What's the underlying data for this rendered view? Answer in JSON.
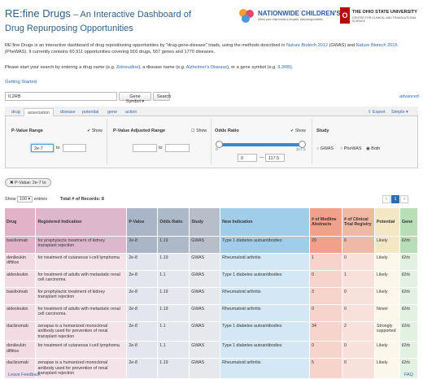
{
  "header": {
    "title_main": "RE:fine Drugs",
    "title_rest": " – An Interactive Dashboard of",
    "title_line2": "Drug Repurposing Opportunities",
    "logo_nationwide": "NATIONWIDE CHILDREN'S",
    "logo_nationwide_tag": "When your child needs a hospital, everything matters.",
    "logo_osu": "THE OHIO STATE UNIVERSITY",
    "logo_osu_sub": "CENTER FOR CLINICAL AND TRANSLATIONAL SCIENCE"
  },
  "intro": {
    "p1": "RE:fine Drugs is an interactive dashboard of drug repositioning opportunities by \"drug-gene-disease\" triads, using the methods described in ",
    "link1": "Nature Biotech 2012",
    "p2": " (GWAS) and ",
    "link2": "Nature Biotech 2015",
    "p3": " (PheWAS). It currently contains 60,911 opportunities covering 916 drugs, 567 genes and 1770 diseases.",
    "prompt1": "Please start your search by entering a drug name (e.g. ",
    "ex_drug": "Zidovudine",
    "prompt2": "), a disease name (e.g. ",
    "ex_disease": "Alzheimer's Disease",
    "prompt3": "), or a gene symbol (e.g. ",
    "ex_gene": "IL2RB",
    "prompt4": ").",
    "getting_started": "Getting Started"
  },
  "search": {
    "value": "IL2RB",
    "type_label": "Gene Symbol",
    "search_label": "Search",
    "advanced": "advanced"
  },
  "tabs": [
    "drug",
    "association",
    "disease",
    "potential",
    "gene",
    "action"
  ],
  "active_tab": "association",
  "toolbar": {
    "export": "Export",
    "simple": "Simple"
  },
  "filters": {
    "pvalue": {
      "label": "P-Value Range",
      "show": "Show",
      "from": "2e-7",
      "to_label": "to",
      "to": ""
    },
    "padj": {
      "label": "P-Value Adjusted Range",
      "show": "Show",
      "from": "",
      "to_label": "to",
      "to": ""
    },
    "odds": {
      "label": "Odds Ratio",
      "show": "Show",
      "min_label": "0",
      "max_label": "117.5",
      "from": "0",
      "dash": "—",
      "to": "117.5",
      "slider_min": 0,
      "slider_max": 117.5
    },
    "study": {
      "label": "Study",
      "options": [
        "GWAS",
        "PheWAS",
        "Both"
      ],
      "selected": "Both"
    }
  },
  "active_filter": "P-Value: 2e-7 to",
  "listing": {
    "show_prefix": "Show",
    "entries_value": "100",
    "show_suffix": "entries",
    "total": "Total # of Records: 8",
    "pages": [
      "‹",
      "1",
      "›"
    ]
  },
  "colors": {
    "drug": "#f3dbe3",
    "drug_sel": "#e2b3c8",
    "indication": "#f5e3ea",
    "indication_sel": "#ddb8cd",
    "pvalue": "#e3e6ef",
    "pvalue_sel": "#aab6c7",
    "odds": "#e5e7ee",
    "odds_sel": "#adb8c8",
    "study": "#e6e8ec",
    "study_sel": "#b7bec9",
    "newind": "#d3e7f4",
    "newind_sel": "#a0cde9",
    "medline": "#f6d4cc",
    "medline_sel": "#f0a08b",
    "trials": "#f8e1da",
    "trials_sel": "#f0b9a6",
    "potential": "#fbf7eb",
    "potential_sel": "#f4e8c4",
    "gene": "#e3f1e3",
    "gene_sel": "#b8deb8",
    "link": "#2a6bb5"
  },
  "table": {
    "headers": [
      "Drug",
      "Registered Indication",
      "P-Value",
      "Odds Ratio",
      "Study",
      "New Indication",
      "# of Medline Abstracts",
      "# of Clinical Trial Registry",
      "Potential",
      "Gene"
    ],
    "rows": [
      {
        "drug": "basiliximab",
        "indication": "for prophylactic treatment of kidney transplant rejection",
        "pvalue": "2e-8",
        "odds": "1.19",
        "study": "GWAS",
        "newind": "Type 1 diabetes autoantibodies",
        "medline": "20",
        "trials": "0",
        "potential": "Likely",
        "gene": "il2rb",
        "sel": true
      },
      {
        "drug": "denileukin diftitox",
        "indication": "for treatment of cutaneous t-cell lymphoma",
        "pvalue": "2e-8",
        "odds": "1.19",
        "study": "GWAS",
        "newind": "Rheumatoid arthritis",
        "medline": "1",
        "trials": "0",
        "potential": "Likely",
        "gene": "il2rb",
        "sel": false
      },
      {
        "drug": "aldesleukin",
        "indication": "for treatment of adults with metastatic renal cell carcinoma.",
        "pvalue": "2e-8",
        "odds": "1.1",
        "study": "GWAS",
        "newind": "Type 1 diabetes autoantibodies",
        "medline": "0",
        "trials": "1",
        "potential": "Likely",
        "gene": "il2rb",
        "sel": false
      },
      {
        "drug": "basiliximab",
        "indication": "for prophylactic treatment of kidney transplant rejection",
        "pvalue": "2e-8",
        "odds": "1.19",
        "study": "GWAS",
        "newind": "Rheumatoid arthritis",
        "medline": "3",
        "trials": "0",
        "potential": "Likely",
        "gene": "il2rb",
        "sel": false
      },
      {
        "drug": "aldesleukin",
        "indication": "for treatment of adults with metastatic renal cell carcinoma.",
        "pvalue": "2e-8",
        "odds": "1.19",
        "study": "GWAS",
        "newind": "Rheumatoid arthritis",
        "medline": "0",
        "trials": "0",
        "potential": "Novel",
        "gene": "il2rb",
        "sel": false
      },
      {
        "drug": "daclizumab",
        "indication": "zenapax is a humanized monoclonal antibody used for prevention of renal transplant rejection",
        "pvalue": "2e-8",
        "odds": "1.1",
        "study": "GWAS",
        "newind": "Type 1 diabetes autoantibodies",
        "medline": "34",
        "trials": "2",
        "potential": "Strongly supported",
        "gene": "il2rb",
        "sel": false
      },
      {
        "drug": "denileukin diftitox",
        "indication": "for treatment of cutaneous t-cell lymphoma",
        "pvalue": "2e-8",
        "odds": "1.1",
        "study": "GWAS",
        "newind": "Type 1 diabetes autoantibodies",
        "medline": "0",
        "trials": "0",
        "potential": "Likely",
        "gene": "il2rb",
        "sel": false
      },
      {
        "drug": "daclizumab",
        "indication": "zenapax is a humanized monoclonal antibody used for prevention of renal transplant rejection",
        "pvalue": "2e-8",
        "odds": "1.19",
        "study": "GWAS",
        "newind": "Rheumatoid arthritis",
        "medline": "5",
        "trials": "0",
        "potential": "Likely",
        "gene": "il2rb",
        "sel": false
      }
    ]
  },
  "footer": {
    "left": "Leave Feedback",
    "right": "FAQ"
  }
}
